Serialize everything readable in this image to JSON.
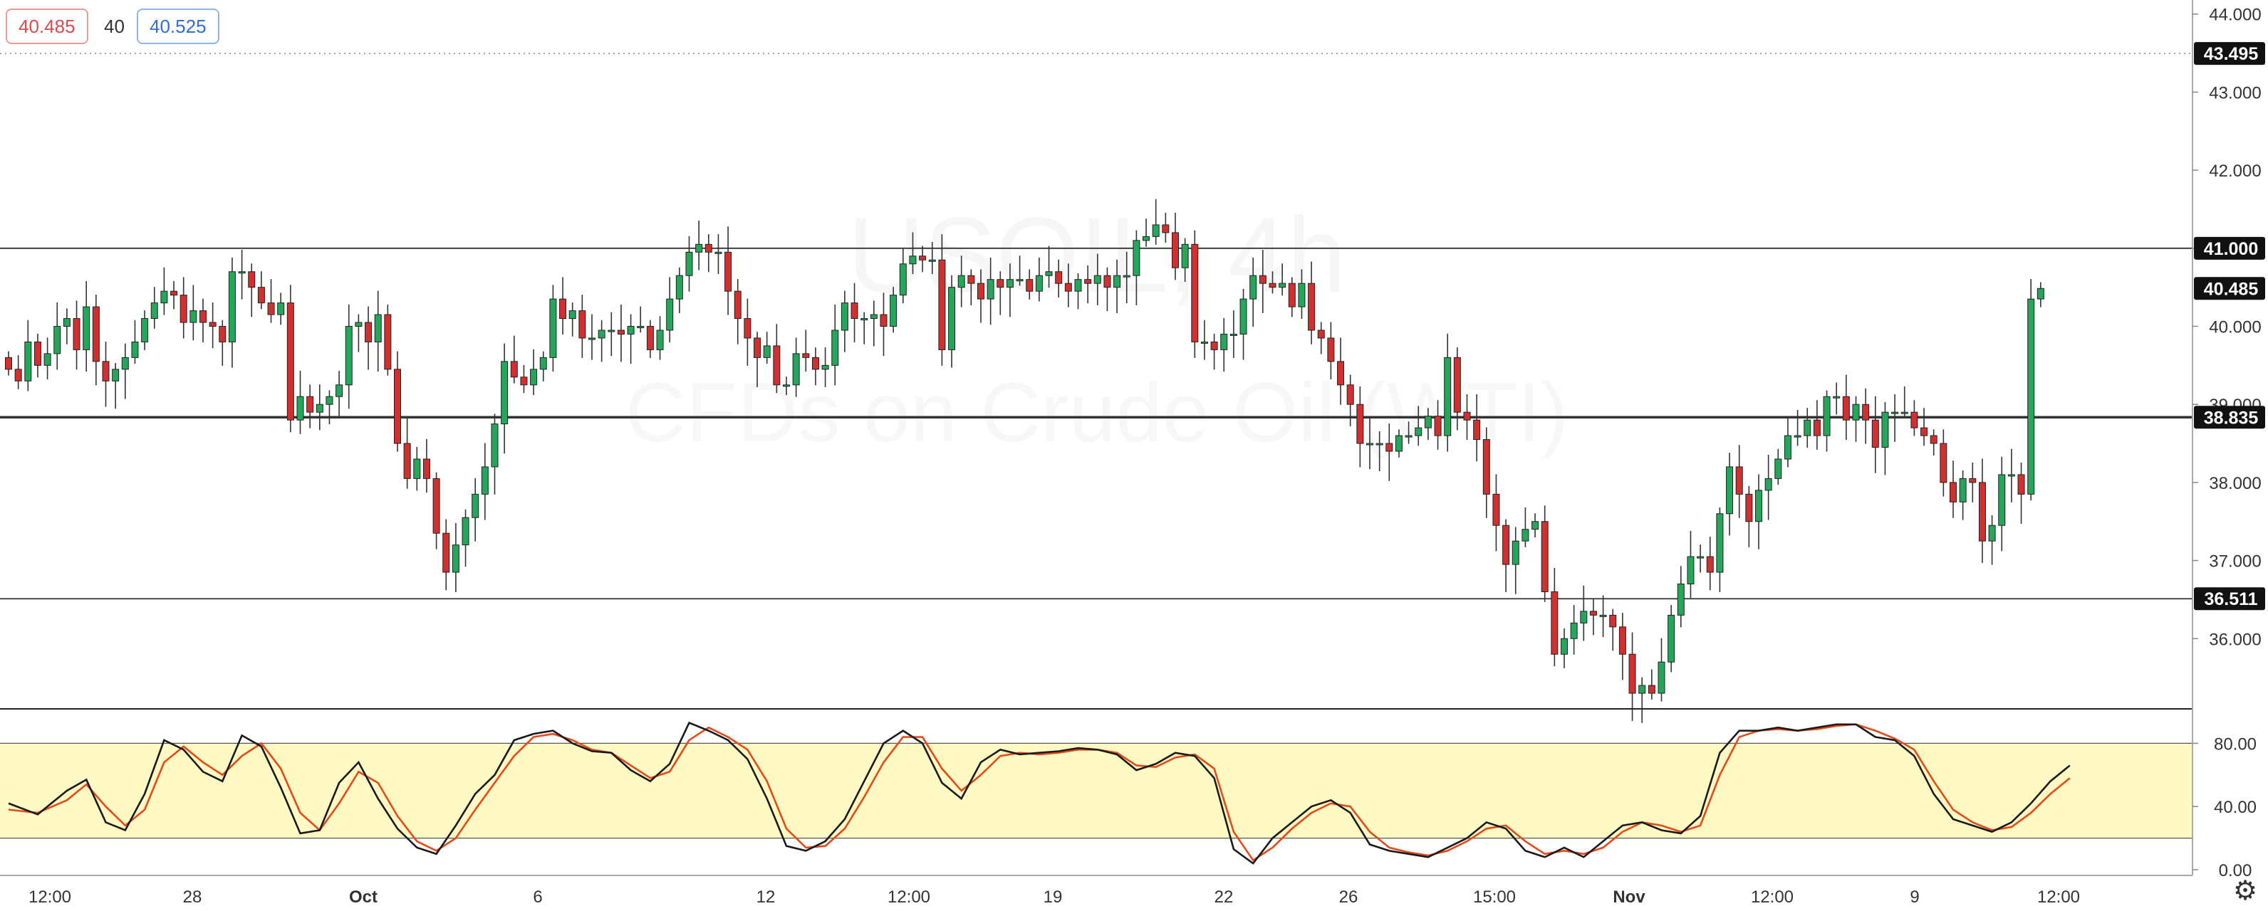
{
  "toolbar": {
    "bid": "40.485",
    "quantity": "40",
    "ask": "40.525"
  },
  "watermark": {
    "symbol": "USOIL, 4h",
    "name": "CFDs on Crude Oil (WTI)"
  },
  "colors": {
    "up": "#26a65b",
    "down": "#d03030",
    "k_line": "#1a1a1a",
    "d_line": "#e64a19",
    "band": "#fff9c4",
    "hline": "#333333",
    "price_tag": "#111111"
  },
  "chart_data": [
    {
      "type": "candlestick",
      "price_axis": {
        "ylim": [
          35.1,
          44.18
        ],
        "ticks": [
          "44.000",
          "43.000",
          "42.000",
          "41.000",
          "40.000",
          "39.000",
          "38.000",
          "37.000",
          "36.000"
        ]
      },
      "time_axis": [
        "12:00",
        "28",
        "Oct",
        "6",
        "12",
        "12:00",
        "19",
        "22",
        "26",
        "15:00",
        "Nov",
        "12:00",
        "9",
        "12:00"
      ],
      "horizontal_lines": [
        {
          "price": 43.495,
          "label": "43.495",
          "style": "dotted"
        },
        {
          "price": 41.0,
          "label": "41.000",
          "style": "solid"
        },
        {
          "price": 38.835,
          "label": "38.835",
          "style": "solid-bold"
        },
        {
          "price": 36.511,
          "label": "36.511",
          "style": "solid"
        }
      ],
      "last_price": {
        "price": 40.485,
        "label": "40.485"
      },
      "closes": [
        39.45,
        39.3,
        39.8,
        39.5,
        39.65,
        40.0,
        40.1,
        39.7,
        40.25,
        39.55,
        39.3,
        39.45,
        39.6,
        39.8,
        40.1,
        40.3,
        40.45,
        40.4,
        40.05,
        40.2,
        40.05,
        40.0,
        39.8,
        40.7,
        40.7,
        40.5,
        40.3,
        40.15,
        40.3,
        38.8,
        39.1,
        38.9,
        39.0,
        39.1,
        39.25,
        40.0,
        40.05,
        39.8,
        40.15,
        39.45,
        38.5,
        38.05,
        38.3,
        38.05,
        37.35,
        36.85,
        37.2,
        37.55,
        37.85,
        38.2,
        38.75,
        39.55,
        39.35,
        39.25,
        39.45,
        39.6,
        40.35,
        40.1,
        40.2,
        39.85,
        39.85,
        39.95,
        39.95,
        39.9,
        40.0,
        40.0,
        39.7,
        39.95,
        40.35,
        40.65,
        40.95,
        41.05,
        40.95,
        40.95,
        40.45,
        40.1,
        39.85,
        39.6,
        39.75,
        39.25,
        39.25,
        39.65,
        39.6,
        39.45,
        39.5,
        39.95,
        40.3,
        40.1,
        40.1,
        40.15,
        40.0,
        40.4,
        40.8,
        40.9,
        40.85,
        40.85,
        39.7,
        40.5,
        40.65,
        40.55,
        40.35,
        40.6,
        40.5,
        40.6,
        40.6,
        40.45,
        40.65,
        40.7,
        40.55,
        40.45,
        40.6,
        40.55,
        40.65,
        40.5,
        40.65,
        40.65,
        41.1,
        41.15,
        41.3,
        41.2,
        40.75,
        41.05,
        39.8,
        39.8,
        39.7,
        39.9,
        39.9,
        40.35,
        40.65,
        40.55,
        40.5,
        40.55,
        40.25,
        40.55,
        39.95,
        39.85,
        39.55,
        39.25,
        39.0,
        38.5,
        38.5,
        38.5,
        38.4,
        38.6,
        38.6,
        38.7,
        38.85,
        38.6,
        39.6,
        38.9,
        38.8,
        38.55,
        37.85,
        37.45,
        36.95,
        37.25,
        37.4,
        37.5,
        36.6,
        35.8,
        36.0,
        36.2,
        36.35,
        36.3,
        36.3,
        36.15,
        35.8,
        35.3,
        35.4,
        35.3,
        35.7,
        36.3,
        36.7,
        37.05,
        37.05,
        36.85,
        37.6,
        38.2,
        37.85,
        37.5,
        37.9,
        38.05,
        38.3,
        38.6,
        38.6,
        38.8,
        38.6,
        39.1,
        39.1,
        38.8,
        39.0,
        38.8,
        38.45,
        38.9,
        38.9,
        38.9,
        38.7,
        38.6,
        38.5,
        38.0,
        37.75,
        38.05,
        38.0,
        37.25,
        37.45,
        38.1,
        38.1,
        37.85,
        40.35,
        40.485
      ],
      "stochastic": {
        "ylim": [
          0,
          100
        ],
        "ticks": [
          "80.00",
          "40.00",
          "0.00"
        ],
        "band": [
          20,
          80
        ],
        "k": [
          [
            0,
            42
          ],
          [
            3,
            35
          ],
          [
            6,
            50
          ],
          [
            8,
            57
          ],
          [
            10,
            30
          ],
          [
            12,
            25
          ],
          [
            14,
            48
          ],
          [
            16,
            82
          ],
          [
            18,
            76
          ],
          [
            20,
            62
          ],
          [
            22,
            56
          ],
          [
            24,
            85
          ],
          [
            26,
            78
          ],
          [
            28,
            52
          ],
          [
            30,
            23
          ],
          [
            32,
            25
          ],
          [
            34,
            55
          ],
          [
            36,
            68
          ],
          [
            38,
            45
          ],
          [
            40,
            26
          ],
          [
            42,
            14
          ],
          [
            44,
            10
          ],
          [
            46,
            28
          ],
          [
            48,
            48
          ],
          [
            50,
            60
          ],
          [
            52,
            82
          ],
          [
            54,
            86
          ],
          [
            56,
            88
          ],
          [
            58,
            80
          ],
          [
            60,
            75
          ],
          [
            62,
            74
          ],
          [
            64,
            63
          ],
          [
            66,
            56
          ],
          [
            68,
            67
          ],
          [
            70,
            93
          ],
          [
            72,
            88
          ],
          [
            74,
            82
          ],
          [
            76,
            70
          ],
          [
            78,
            45
          ],
          [
            80,
            15
          ],
          [
            82,
            12
          ],
          [
            84,
            18
          ],
          [
            86,
            32
          ],
          [
            88,
            56
          ],
          [
            90,
            80
          ],
          [
            92,
            88
          ],
          [
            94,
            80
          ],
          [
            96,
            55
          ],
          [
            98,
            45
          ],
          [
            100,
            68
          ],
          [
            102,
            76
          ],
          [
            104,
            73
          ],
          [
            106,
            74
          ],
          [
            108,
            75
          ],
          [
            110,
            77
          ],
          [
            112,
            76
          ],
          [
            114,
            73
          ],
          [
            116,
            63
          ],
          [
            118,
            67
          ],
          [
            120,
            74
          ],
          [
            122,
            72
          ],
          [
            124,
            58
          ],
          [
            126,
            13
          ],
          [
            128,
            4
          ],
          [
            130,
            20
          ],
          [
            132,
            30
          ],
          [
            134,
            40
          ],
          [
            136,
            44
          ],
          [
            138,
            36
          ],
          [
            140,
            16
          ],
          [
            142,
            12
          ],
          [
            144,
            10
          ],
          [
            146,
            8
          ],
          [
            148,
            14
          ],
          [
            150,
            20
          ],
          [
            152,
            30
          ],
          [
            154,
            26
          ],
          [
            156,
            12
          ],
          [
            158,
            8
          ],
          [
            160,
            14
          ],
          [
            162,
            8
          ],
          [
            164,
            18
          ],
          [
            166,
            28
          ],
          [
            168,
            30
          ],
          [
            170,
            25
          ],
          [
            172,
            23
          ],
          [
            174,
            34
          ],
          [
            176,
            74
          ],
          [
            178,
            88
          ],
          [
            180,
            88
          ],
          [
            182,
            90
          ],
          [
            184,
            88
          ],
          [
            186,
            90
          ],
          [
            188,
            92
          ],
          [
            190,
            92
          ],
          [
            192,
            84
          ],
          [
            194,
            82
          ],
          [
            196,
            72
          ],
          [
            198,
            48
          ],
          [
            200,
            32
          ],
          [
            202,
            28
          ],
          [
            204,
            24
          ],
          [
            206,
            30
          ],
          [
            208,
            42
          ],
          [
            210,
            56
          ],
          [
            212,
            66
          ]
        ],
        "d": [
          [
            0,
            38
          ],
          [
            3,
            36
          ],
          [
            6,
            44
          ],
          [
            8,
            54
          ],
          [
            10,
            40
          ],
          [
            12,
            28
          ],
          [
            14,
            38
          ],
          [
            16,
            68
          ],
          [
            18,
            78
          ],
          [
            20,
            68
          ],
          [
            22,
            60
          ],
          [
            24,
            72
          ],
          [
            26,
            80
          ],
          [
            28,
            64
          ],
          [
            30,
            36
          ],
          [
            32,
            25
          ],
          [
            34,
            42
          ],
          [
            36,
            62
          ],
          [
            38,
            55
          ],
          [
            40,
            34
          ],
          [
            42,
            18
          ],
          [
            44,
            12
          ],
          [
            46,
            20
          ],
          [
            48,
            38
          ],
          [
            50,
            55
          ],
          [
            52,
            72
          ],
          [
            54,
            84
          ],
          [
            56,
            86
          ],
          [
            58,
            82
          ],
          [
            60,
            76
          ],
          [
            62,
            74
          ],
          [
            64,
            66
          ],
          [
            66,
            58
          ],
          [
            68,
            62
          ],
          [
            70,
            82
          ],
          [
            72,
            90
          ],
          [
            74,
            84
          ],
          [
            76,
            76
          ],
          [
            78,
            56
          ],
          [
            80,
            26
          ],
          [
            82,
            14
          ],
          [
            84,
            15
          ],
          [
            86,
            26
          ],
          [
            88,
            46
          ],
          [
            90,
            68
          ],
          [
            92,
            84
          ],
          [
            94,
            84
          ],
          [
            96,
            64
          ],
          [
            98,
            50
          ],
          [
            100,
            60
          ],
          [
            102,
            72
          ],
          [
            104,
            74
          ],
          [
            106,
            73
          ],
          [
            108,
            74
          ],
          [
            110,
            76
          ],
          [
            112,
            76
          ],
          [
            114,
            74
          ],
          [
            116,
            66
          ],
          [
            118,
            65
          ],
          [
            120,
            71
          ],
          [
            122,
            73
          ],
          [
            124,
            64
          ],
          [
            126,
            24
          ],
          [
            128,
            6
          ],
          [
            130,
            14
          ],
          [
            132,
            26
          ],
          [
            134,
            36
          ],
          [
            136,
            42
          ],
          [
            138,
            40
          ],
          [
            140,
            24
          ],
          [
            142,
            14
          ],
          [
            144,
            11
          ],
          [
            146,
            9
          ],
          [
            148,
            12
          ],
          [
            150,
            18
          ],
          [
            152,
            26
          ],
          [
            154,
            28
          ],
          [
            156,
            18
          ],
          [
            158,
            10
          ],
          [
            160,
            12
          ],
          [
            162,
            10
          ],
          [
            164,
            14
          ],
          [
            166,
            24
          ],
          [
            168,
            30
          ],
          [
            170,
            28
          ],
          [
            172,
            24
          ],
          [
            174,
            28
          ],
          [
            176,
            60
          ],
          [
            178,
            84
          ],
          [
            180,
            88
          ],
          [
            182,
            89
          ],
          [
            184,
            88
          ],
          [
            186,
            89
          ],
          [
            188,
            91
          ],
          [
            190,
            92
          ],
          [
            192,
            88
          ],
          [
            194,
            83
          ],
          [
            196,
            76
          ],
          [
            198,
            56
          ],
          [
            200,
            38
          ],
          [
            202,
            30
          ],
          [
            204,
            25
          ],
          [
            206,
            27
          ],
          [
            208,
            36
          ],
          [
            210,
            48
          ],
          [
            212,
            58
          ]
        ]
      }
    }
  ]
}
